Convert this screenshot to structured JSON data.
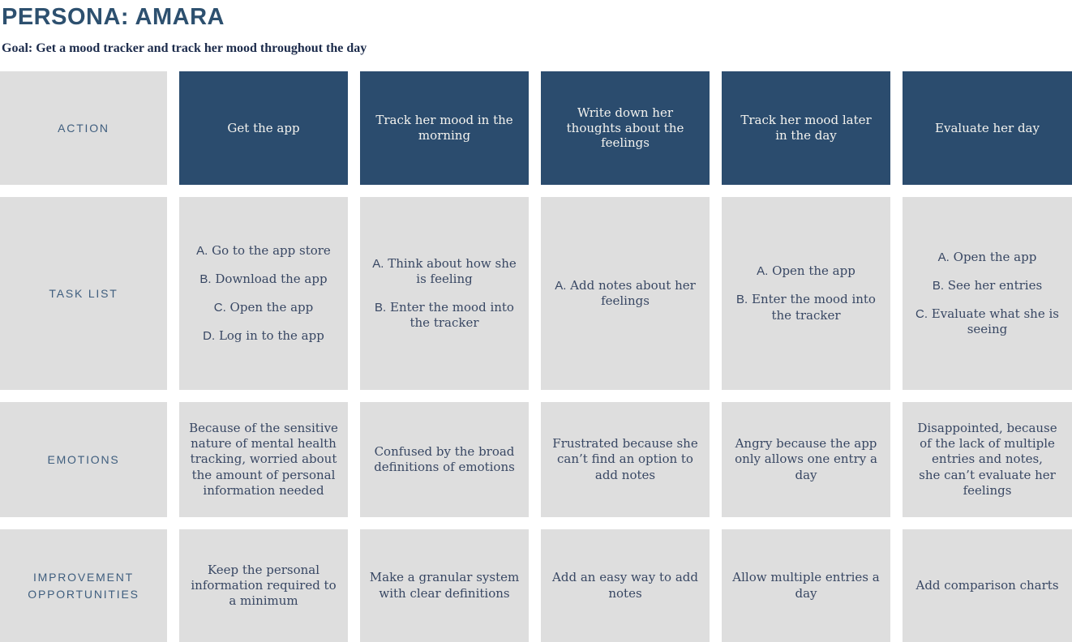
{
  "page": {
    "title": "PERSONA: AMARA",
    "goal": "Goal: Get a mood tracker and track her mood throughout the day"
  },
  "colors": {
    "stage_header_bg": "#2b4c6e",
    "cell_bg": "#dedede",
    "title_color": "#2d506f",
    "row_label_color": "#3f5e7e",
    "body_text_color": "#384763",
    "stage_header_text": "#f4f3ef",
    "goal_text_color": "#1c2b4b"
  },
  "journey": {
    "row_labels": [
      "ACTION",
      "TASK LIST",
      "EMOTIONS",
      "IMPROVEMENT OPPORTUNITIES"
    ],
    "columns": [
      {
        "action": "Get the app",
        "tasks": [
          {
            "marker": "A.",
            "text": "Go to the app store"
          },
          {
            "marker": "B.",
            "text": "Download the app"
          },
          {
            "marker": "C.",
            "text": "Open the app"
          },
          {
            "marker": "D.",
            "text": "Log in to the app"
          }
        ],
        "emotion": "Because of the sensitive nature of mental health tracking, worried about the amount of personal information needed",
        "improvement": "Keep the personal information required to a minimum"
      },
      {
        "action": "Track her mood in the morning",
        "tasks": [
          {
            "marker": "A.",
            "text": "Think about how she is feeling"
          },
          {
            "marker": "B.",
            "text": "Enter the mood into the tracker"
          }
        ],
        "emotion": "Confused by the broad definitions of emotions",
        "improvement": "Make a granular system with clear definitions"
      },
      {
        "action": "Write down her thoughts about the feelings",
        "tasks": [
          {
            "marker": "A.",
            "text": "Add notes about her feelings"
          }
        ],
        "emotion": "Frustrated because she can’t find an option to add notes",
        "improvement": "Add an easy way to add notes"
      },
      {
        "action": "Track her mood later in the day",
        "tasks": [
          {
            "marker": "A.",
            "text": "Open the app"
          },
          {
            "marker": "B.",
            "text": "Enter the mood into the tracker"
          }
        ],
        "emotion": "Angry because the app only allows one entry a day",
        "improvement": "Allow multiple entries a day"
      },
      {
        "action": "Evaluate her day",
        "tasks": [
          {
            "marker": "A.",
            "text": "Open the app"
          },
          {
            "marker": "B.",
            "text": "See her entries"
          },
          {
            "marker": "C.",
            "text": "Evaluate what she is seeing"
          }
        ],
        "emotion": "Disappointed, because of the lack of multiple entries and notes,\nshe can’t evaluate her feelings",
        "improvement": "Add comparison charts"
      }
    ]
  }
}
